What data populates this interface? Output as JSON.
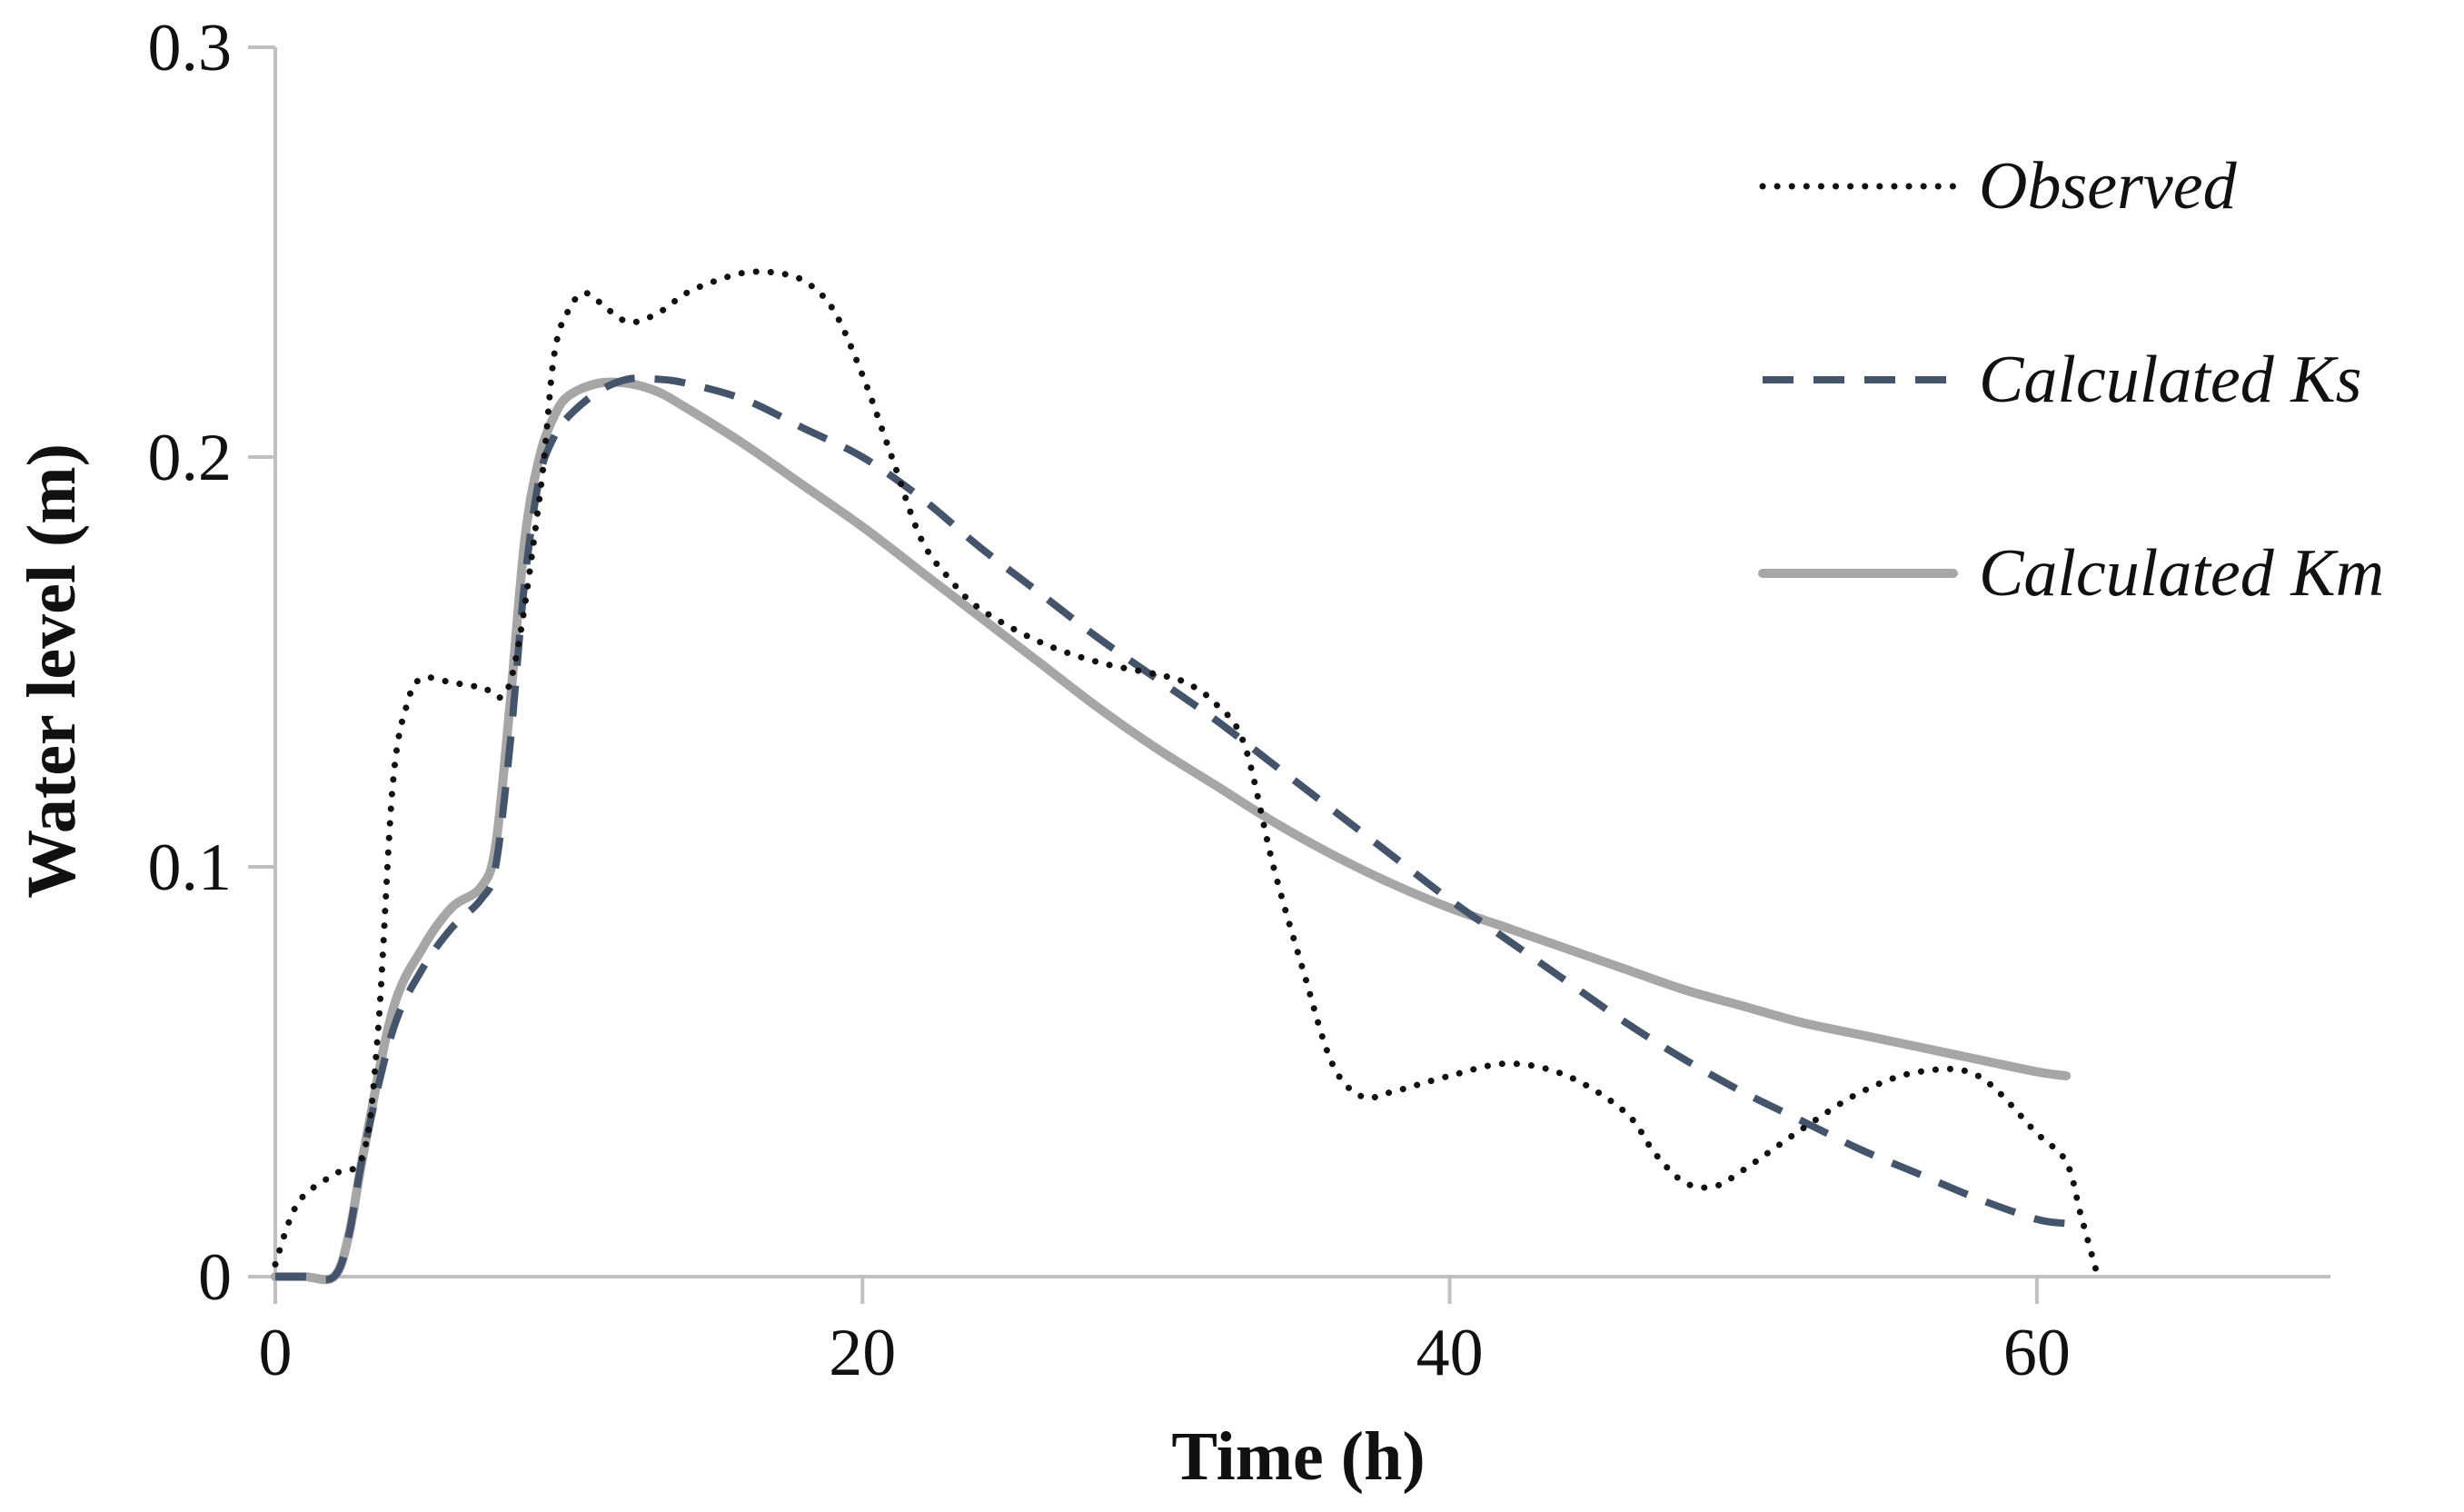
{
  "chart_data": {
    "type": "line",
    "title": "",
    "xlabel": "Time (h)",
    "ylabel": "Water level (m)",
    "xlim": [
      0,
      70
    ],
    "ylim": [
      0,
      0.3
    ],
    "xticks": [
      0,
      20,
      40,
      60
    ],
    "xtick_labels": [
      "0",
      "20",
      "40",
      "60"
    ],
    "yticks": [
      0,
      0.1,
      0.2,
      0.3
    ],
    "ytick_labels": [
      "0",
      "0.1",
      "0.2",
      "0.3"
    ],
    "grid": false,
    "legend_position": "top-right",
    "series": [
      {
        "name": "Observed",
        "style": "dotted",
        "color": "#111111",
        "x": [
          0,
          0.5,
          1,
          2,
          3,
          3.5,
          4,
          4.5,
          5,
          6,
          7,
          8,
          9,
          9.5,
          10,
          10.5,
          11,
          12,
          13,
          14,
          15,
          16,
          17,
          18,
          19,
          20,
          21,
          22,
          23,
          24,
          26,
          28,
          30,
          31,
          32,
          33,
          34,
          35,
          36,
          37,
          38,
          40,
          42,
          44,
          46,
          47,
          48,
          49,
          50,
          52,
          54,
          56,
          58,
          60,
          61,
          61.5,
          62
        ],
        "y": [
          0.003,
          0.014,
          0.02,
          0.025,
          0.03,
          0.06,
          0.12,
          0.14,
          0.146,
          0.145,
          0.144,
          0.145,
          0.19,
          0.225,
          0.236,
          0.24,
          0.238,
          0.233,
          0.235,
          0.24,
          0.243,
          0.245,
          0.245,
          0.243,
          0.236,
          0.22,
          0.2,
          0.18,
          0.17,
          0.163,
          0.155,
          0.15,
          0.147,
          0.145,
          0.14,
          0.13,
          0.1,
          0.075,
          0.052,
          0.044,
          0.045,
          0.049,
          0.052,
          0.049,
          0.04,
          0.03,
          0.023,
          0.022,
          0.026,
          0.036,
          0.045,
          0.05,
          0.049,
          0.035,
          0.028,
          0.015,
          0.002
        ]
      },
      {
        "name": "Calculated Ks",
        "style": "dashed",
        "color": "#44546a",
        "x": [
          0,
          1,
          2,
          2.5,
          3,
          4,
          5,
          6,
          7,
          7.5,
          8,
          8.5,
          9,
          9.5,
          10,
          11,
          12,
          13,
          14,
          16,
          18,
          20,
          22,
          24,
          26,
          28,
          30,
          32,
          34,
          36,
          38,
          40,
          42,
          44,
          46,
          48,
          50,
          52,
          54,
          56,
          58,
          60,
          61
        ],
        "y": [
          0,
          0,
          0,
          0.01,
          0.03,
          0.06,
          0.075,
          0.085,
          0.092,
          0.1,
          0.13,
          0.17,
          0.195,
          0.205,
          0.21,
          0.216,
          0.219,
          0.219,
          0.218,
          0.214,
          0.207,
          0.2,
          0.19,
          0.178,
          0.167,
          0.156,
          0.146,
          0.136,
          0.125,
          0.114,
          0.103,
          0.092,
          0.082,
          0.072,
          0.062,
          0.053,
          0.045,
          0.038,
          0.031,
          0.025,
          0.019,
          0.014,
          0.013
        ]
      },
      {
        "name": "Calculated Km",
        "style": "solid",
        "color": "#a6a6a6",
        "x": [
          0,
          1,
          2,
          2.5,
          3,
          4,
          5,
          6,
          7,
          7.5,
          8,
          8.5,
          9,
          9.5,
          10,
          11,
          12,
          13,
          14,
          16,
          18,
          20,
          22,
          24,
          26,
          28,
          30,
          32,
          34,
          36,
          38,
          40,
          42,
          44,
          46,
          48,
          50,
          52,
          54,
          56,
          58,
          60,
          61
        ],
        "y": [
          0,
          0,
          0,
          0.01,
          0.03,
          0.065,
          0.08,
          0.09,
          0.095,
          0.105,
          0.14,
          0.18,
          0.2,
          0.21,
          0.215,
          0.218,
          0.218,
          0.216,
          0.212,
          0.203,
          0.193,
          0.183,
          0.172,
          0.161,
          0.15,
          0.139,
          0.129,
          0.12,
          0.111,
          0.103,
          0.096,
          0.09,
          0.085,
          0.08,
          0.075,
          0.07,
          0.066,
          0.062,
          0.059,
          0.056,
          0.053,
          0.05,
          0.049
        ]
      }
    ]
  }
}
